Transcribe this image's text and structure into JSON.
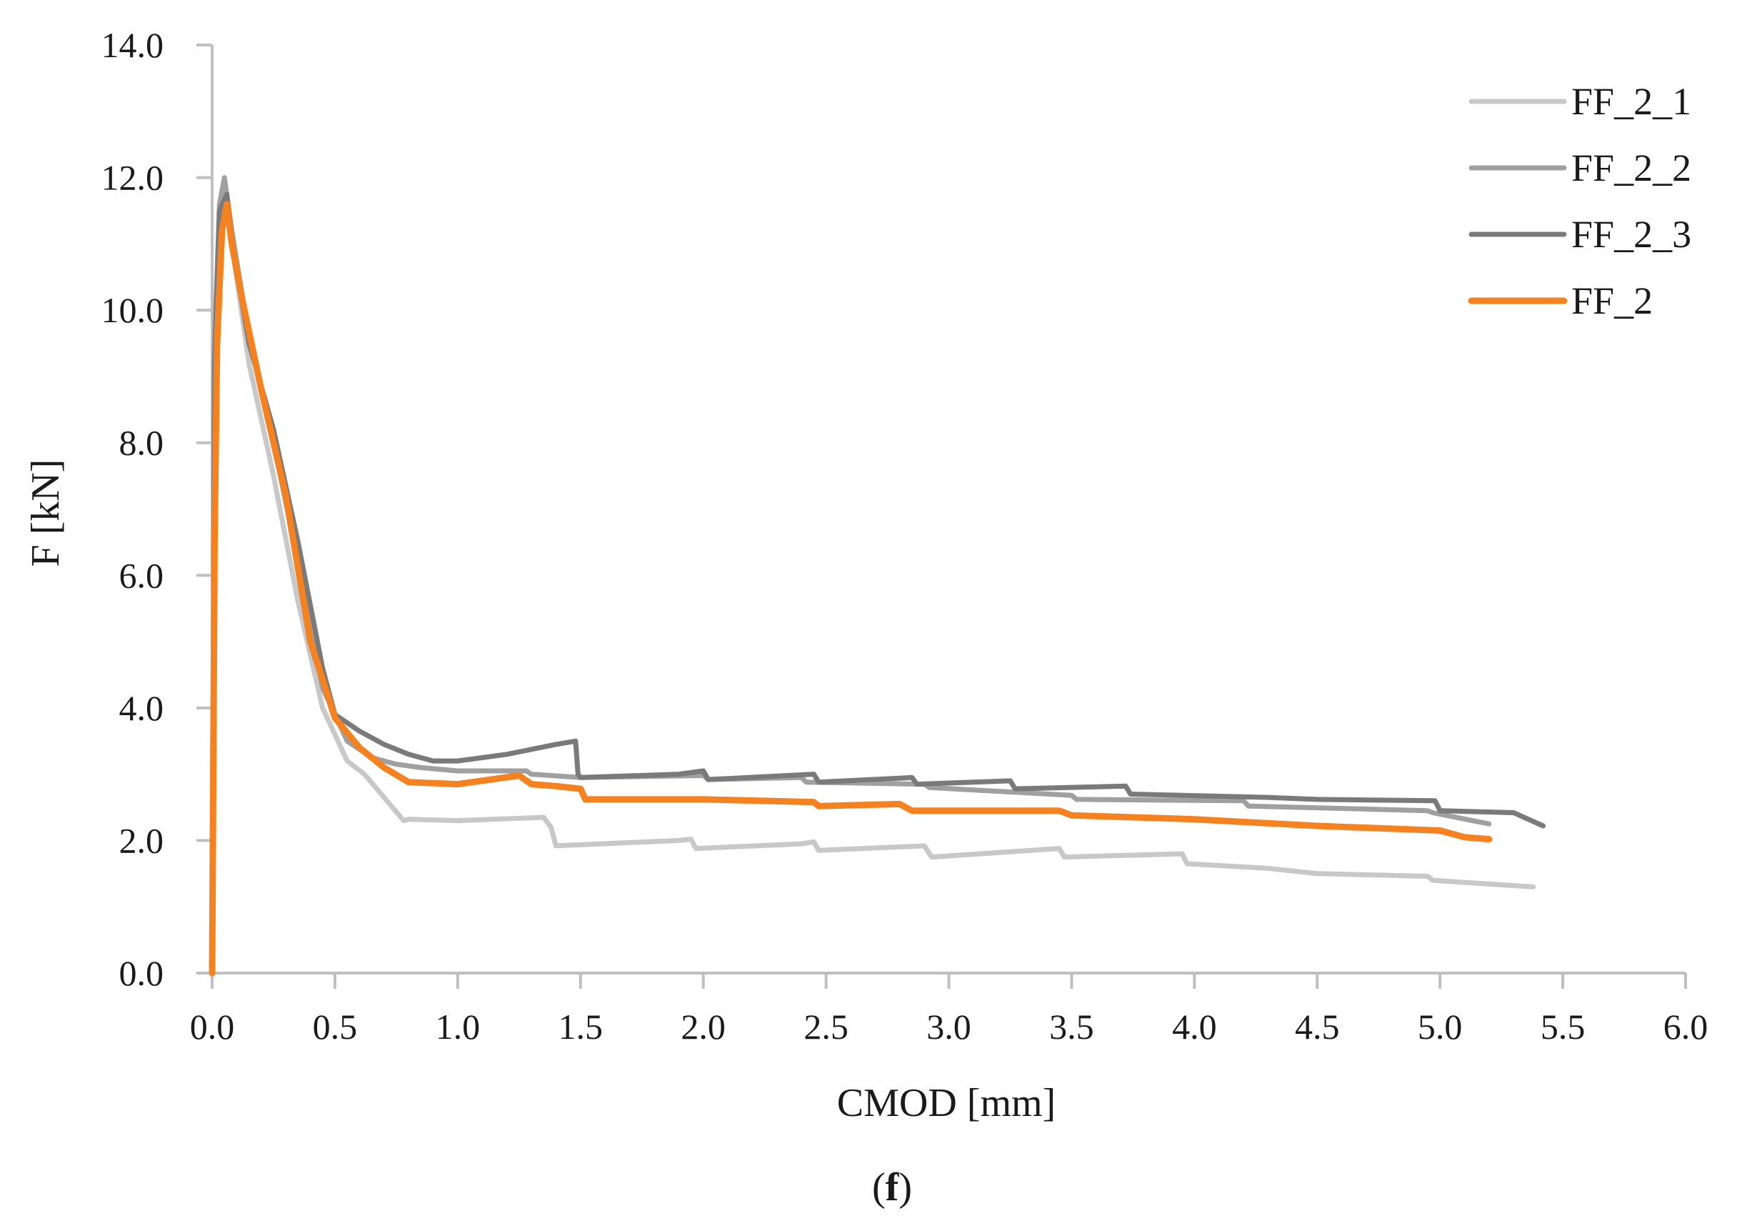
{
  "chart_data": {
    "type": "line",
    "title": "",
    "xlabel": "CMOD [mm]",
    "ylabel": "F [kN]",
    "xlim": [
      0,
      6
    ],
    "ylim": [
      0,
      14
    ],
    "xticks": [
      "0.0",
      "0.5",
      "1.0",
      "1.5",
      "2.0",
      "2.5",
      "3.0",
      "3.5",
      "4.0",
      "4.5",
      "5.0",
      "5.5",
      "6.0"
    ],
    "yticks": [
      "0.0",
      "2.0",
      "4.0",
      "6.0",
      "8.0",
      "10.0",
      "12.0",
      "14.0"
    ],
    "grid": false,
    "legend_position": "top-right",
    "series": [
      {
        "name": "FF_2_1",
        "color": "#c8c8c8",
        "x": [
          0,
          0.01,
          0.03,
          0.05,
          0.08,
          0.15,
          0.25,
          0.35,
          0.45,
          0.55,
          0.62,
          0.7,
          0.78,
          0.8,
          1.0,
          1.35,
          1.38,
          1.4,
          1.9,
          1.95,
          1.97,
          2.4,
          2.45,
          2.47,
          2.9,
          2.93,
          3.45,
          3.47,
          3.95,
          3.97,
          4.3,
          4.5,
          4.95,
          4.97,
          5.38
        ],
        "values": [
          0,
          9.0,
          11.3,
          11.8,
          11.0,
          9.2,
          7.5,
          5.6,
          4.0,
          3.2,
          3.0,
          2.65,
          2.3,
          2.32,
          2.3,
          2.35,
          2.2,
          1.92,
          2.0,
          2.02,
          1.88,
          1.95,
          1.98,
          1.85,
          1.92,
          1.75,
          1.88,
          1.75,
          1.8,
          1.65,
          1.58,
          1.5,
          1.46,
          1.4,
          1.3
        ]
      },
      {
        "name": "FF_2_2",
        "color": "#a0a0a0",
        "x": [
          0,
          0.01,
          0.03,
          0.05,
          0.08,
          0.15,
          0.25,
          0.35,
          0.45,
          0.55,
          0.65,
          0.75,
          0.85,
          1.0,
          1.28,
          1.3,
          1.5,
          2.0,
          2.02,
          2.4,
          2.42,
          2.9,
          2.92,
          3.5,
          3.52,
          4.2,
          4.22,
          4.95,
          4.97,
          5.2
        ],
        "values": [
          0,
          9.5,
          11.6,
          12.0,
          11.2,
          9.6,
          8.0,
          6.2,
          4.3,
          3.5,
          3.25,
          3.15,
          3.1,
          3.05,
          3.05,
          3.0,
          2.95,
          2.98,
          2.92,
          2.95,
          2.88,
          2.85,
          2.8,
          2.68,
          2.62,
          2.6,
          2.52,
          2.45,
          2.42,
          2.25
        ]
      },
      {
        "name": "FF_2_3",
        "color": "#7a7a7a",
        "x": [
          0,
          0.01,
          0.03,
          0.06,
          0.09,
          0.15,
          0.25,
          0.35,
          0.45,
          0.5,
          0.6,
          0.7,
          0.8,
          0.9,
          1.0,
          1.2,
          1.4,
          1.48,
          1.49,
          1.5,
          1.9,
          2.0,
          2.02,
          2.45,
          2.47,
          2.85,
          2.87,
          3.25,
          3.27,
          3.72,
          3.74,
          4.3,
          4.5,
          4.98,
          5.0,
          5.3,
          5.42
        ],
        "values": [
          0,
          9.2,
          11.5,
          11.75,
          10.8,
          9.5,
          8.2,
          6.5,
          4.6,
          3.9,
          3.65,
          3.45,
          3.3,
          3.2,
          3.2,
          3.3,
          3.45,
          3.5,
          3.0,
          2.95,
          3.0,
          3.05,
          2.92,
          3.0,
          2.88,
          2.95,
          2.85,
          2.9,
          2.78,
          2.82,
          2.7,
          2.65,
          2.62,
          2.6,
          2.45,
          2.42,
          2.22
        ]
      },
      {
        "name": "FF_2",
        "color": "#f58220",
        "x": [
          0,
          0.01,
          0.02,
          0.04,
          0.06,
          0.08,
          0.12,
          0.2,
          0.3,
          0.4,
          0.5,
          0.6,
          0.7,
          0.8,
          1.0,
          1.25,
          1.3,
          1.4,
          1.5,
          1.52,
          2.0,
          2.45,
          2.47,
          2.8,
          2.85,
          3.45,
          3.5,
          4.0,
          4.5,
          5.0,
          5.1,
          5.2
        ],
        "values": [
          0,
          6.5,
          9.5,
          11.2,
          11.6,
          11.0,
          10.2,
          8.8,
          7.2,
          5.0,
          3.85,
          3.4,
          3.1,
          2.88,
          2.85,
          2.98,
          2.85,
          2.82,
          2.78,
          2.62,
          2.62,
          2.58,
          2.52,
          2.55,
          2.45,
          2.45,
          2.38,
          2.32,
          2.22,
          2.15,
          2.05,
          2.02
        ]
      }
    ]
  },
  "caption": {
    "open": "(",
    "letter": "f",
    "close": ")"
  }
}
